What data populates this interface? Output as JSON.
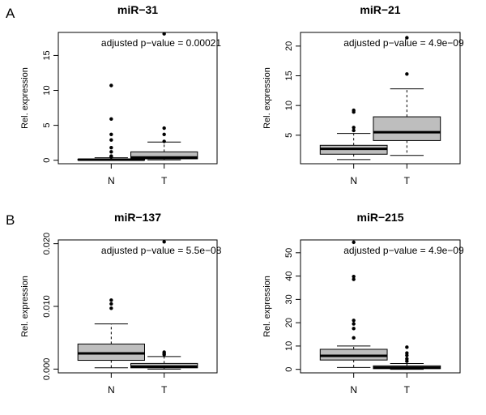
{
  "figure": {
    "panel_labels": [
      "A",
      "B"
    ]
  },
  "colors": {
    "box_fill": "#bebebe",
    "line": "#000000"
  },
  "chart_data": [
    {
      "type": "boxplot",
      "title": "miR−31",
      "ylabel": "Rel. expression",
      "annotation_label": "adjusted p−value =",
      "annotation_value": "0.00021",
      "categories": [
        "N",
        "T"
      ],
      "ylim": [
        -0.5,
        18.3
      ],
      "yticks": [
        0,
        5,
        10,
        15
      ],
      "yticklabels": [
        "0",
        "5",
        "10",
        "15"
      ],
      "boxes": [
        {
          "category": "N",
          "min": 0.0,
          "q1": 0.02,
          "median": 0.08,
          "q3": 0.15,
          "max": 0.35,
          "outliers": [
            10.7,
            5.9,
            3.7,
            2.9,
            1.8,
            1.2,
            0.6,
            0.5
          ]
        },
        {
          "category": "T",
          "min": 0.05,
          "q1": 0.2,
          "median": 0.4,
          "q3": 1.2,
          "max": 2.6,
          "outliers": [
            18.1,
            4.6,
            3.7,
            2.7
          ]
        }
      ]
    },
    {
      "type": "boxplot",
      "title": "miR−21",
      "ylabel": "Rel. expression",
      "annotation_label": "adjusted p−value =",
      "annotation_value": "4.9e−09",
      "categories": [
        "N",
        "T"
      ],
      "ylim": [
        0.2,
        22.3
      ],
      "yticks": [
        5,
        10,
        15,
        20
      ],
      "yticklabels": [
        "5",
        "10",
        "15",
        "20"
      ],
      "boxes": [
        {
          "category": "N",
          "min": 0.9,
          "q1": 1.8,
          "median": 2.7,
          "q3": 3.3,
          "max": 5.3,
          "outliers": [
            9.2,
            8.9,
            6.3,
            5.8
          ]
        },
        {
          "category": "T",
          "min": 1.6,
          "q1": 4.1,
          "median": 5.5,
          "q3": 8.1,
          "max": 12.8,
          "outliers": [
            21.4,
            15.3
          ]
        }
      ]
    },
    {
      "type": "boxplot",
      "title": "miR−137",
      "ylabel": "Rel. expression",
      "annotation_label": "adjusted p−value =",
      "annotation_value": "5.5e−08",
      "categories": [
        "N",
        "T"
      ],
      "ylim": [
        -0.0006,
        0.0206
      ],
      "yticks": [
        0.0,
        0.01,
        0.02
      ],
      "yticklabels": [
        "0.000",
        "0.010",
        "0.020"
      ],
      "boxes": [
        {
          "category": "N",
          "min": 0.0002,
          "q1": 0.0014,
          "median": 0.0025,
          "q3": 0.004,
          "max": 0.0072,
          "outliers": [
            0.011,
            0.0104,
            0.0097
          ]
        },
        {
          "category": "T",
          "min": 0.0,
          "q1": 0.0002,
          "median": 0.0004,
          "q3": 0.0009,
          "max": 0.002,
          "outliers": [
            0.0203,
            0.0027,
            0.0025,
            0.0023
          ]
        }
      ]
    },
    {
      "type": "boxplot",
      "title": "miR−215",
      "ylabel": "Rel. expression",
      "annotation_label": "adjusted p−value =",
      "annotation_value": "4.9e−09",
      "categories": [
        "N",
        "T"
      ],
      "ylim": [
        -1.5,
        55.5
      ],
      "yticks": [
        0,
        10,
        20,
        30,
        40,
        50
      ],
      "yticklabels": [
        "0",
        "10",
        "20",
        "30",
        "40",
        "50"
      ],
      "boxes": [
        {
          "category": "N",
          "min": 0.8,
          "q1": 4.0,
          "median": 5.8,
          "q3": 8.6,
          "max": 10.0,
          "outliers": [
            54.5,
            39.8,
            38.6,
            21.0,
            19.5,
            17.5,
            13.5
          ]
        },
        {
          "category": "T",
          "min": 0.0,
          "q1": 0.3,
          "median": 0.7,
          "q3": 1.5,
          "max": 2.5,
          "outliers": [
            9.5,
            7.0,
            6.0,
            4.5,
            3.5
          ]
        }
      ]
    }
  ]
}
